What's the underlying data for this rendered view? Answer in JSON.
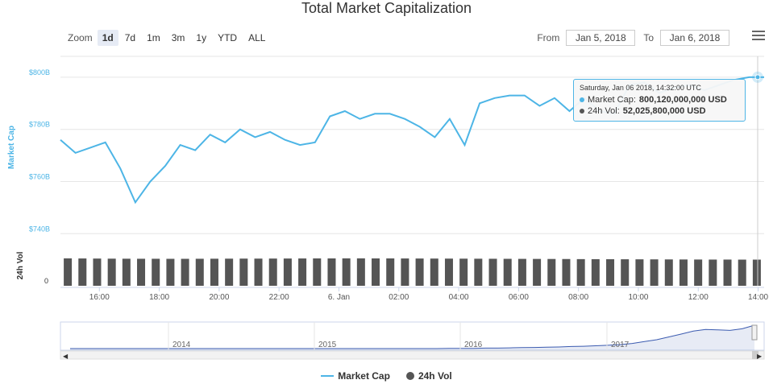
{
  "title": "Total Market Capitalization",
  "range_selector": {
    "zoom_label": "Zoom",
    "buttons": [
      "1d",
      "7d",
      "1m",
      "3m",
      "1y",
      "YTD",
      "ALL"
    ],
    "active": "1d"
  },
  "date_range": {
    "from_label": "From",
    "from_value": "Jan 5, 2018",
    "to_label": "To",
    "to_value": "Jan 6, 2018"
  },
  "menu_icon": "hamburger-menu-icon",
  "tooltip": {
    "date": "Saturday, Jan 06 2018, 14:32:00 UTC",
    "market_cap_label": "Market Cap:",
    "market_cap_value": "800,120,000,000 USD",
    "vol_label": "24h Vol:",
    "vol_value": "52,025,800,000 USD"
  },
  "legend": {
    "market_cap": "Market Cap",
    "vol": "24h Vol"
  },
  "colors": {
    "market_cap": "#4db5e6",
    "vol": "#555555",
    "navigator": "#3b5bb0",
    "tooltip_border": "#4db5e6"
  },
  "chart_data": {
    "type": "line",
    "y_axis_label": "Market Cap",
    "y_ticks": [
      "$740B",
      "$760B",
      "$780B",
      "$800B"
    ],
    "ylim": [
      737,
      808
    ],
    "vol_axis_label": "24h Vol",
    "vol_ticks": [
      "0"
    ],
    "x_ticks": [
      "16:00",
      "18:00",
      "20:00",
      "22:00",
      "6. Jan",
      "02:00",
      "04:00",
      "06:00",
      "08:00",
      "10:00",
      "12:00",
      "14:00"
    ],
    "x": [
      0,
      1,
      2,
      3,
      4,
      5,
      6,
      7,
      8,
      9,
      10,
      11,
      12,
      13,
      14,
      15,
      16,
      17,
      18,
      19,
      20,
      21,
      22,
      23,
      24,
      25,
      26,
      27,
      28,
      29,
      30,
      31,
      32,
      33,
      34,
      35,
      36,
      37,
      38,
      39,
      40,
      41,
      42,
      43,
      44,
      45,
      46,
      47
    ],
    "x_start_hour": 14.7,
    "x_step_hours": 0.5,
    "series": [
      {
        "name": "Market Cap",
        "values": [
          776,
          771,
          773,
          775,
          765,
          752,
          760,
          766,
          774,
          772,
          778,
          775,
          780,
          777,
          779,
          776,
          774,
          775,
          785,
          787,
          784,
          786,
          786,
          784,
          781,
          777,
          784,
          774,
          790,
          792,
          793,
          793,
          789,
          792,
          787,
          792,
          787,
          786,
          797,
          798,
          794,
          796,
          797,
          795,
          797,
          799,
          800,
          800
        ],
        "unit": "USD billions"
      },
      {
        "name": "24h Vol",
        "values": [
          54.5,
          54.3,
          54.1,
          53.9,
          53.8,
          53.7,
          53.7,
          53.6,
          53.6,
          53.7,
          53.8,
          53.9,
          54.0,
          54.0,
          54.1,
          54.2,
          54.3,
          54.4,
          54.4,
          54.5,
          54.5,
          54.4,
          54.4,
          54.3,
          54.2,
          54.1,
          54.0,
          53.9,
          53.8,
          53.7,
          53.6,
          53.5,
          53.4,
          53.3,
          53.2,
          53.0,
          52.9,
          52.8,
          52.7,
          52.6,
          52.5,
          52.4,
          52.3,
          52.2,
          52.1,
          52.1,
          52.0,
          52.0
        ],
        "unit": "USD billions"
      }
    ],
    "vol_ylim": [
      0,
      80
    ],
    "navigator": {
      "x_ticks": [
        "2014",
        "2015",
        "2016",
        "2017"
      ],
      "values": [
        0,
        0,
        0,
        0,
        0,
        0,
        0,
        0,
        0,
        0,
        0,
        0,
        0,
        0,
        0,
        0,
        0,
        0,
        0,
        0,
        0,
        0,
        0,
        0,
        0,
        0,
        0,
        0,
        0,
        0,
        0,
        1,
        1,
        1,
        2,
        2,
        3,
        4,
        5,
        6,
        7,
        9,
        10,
        12,
        14,
        17,
        22,
        30,
        38,
        50,
        62,
        75,
        82,
        80,
        78,
        85,
        100
      ]
    },
    "grid": true,
    "legend_position": "bottom-center"
  }
}
